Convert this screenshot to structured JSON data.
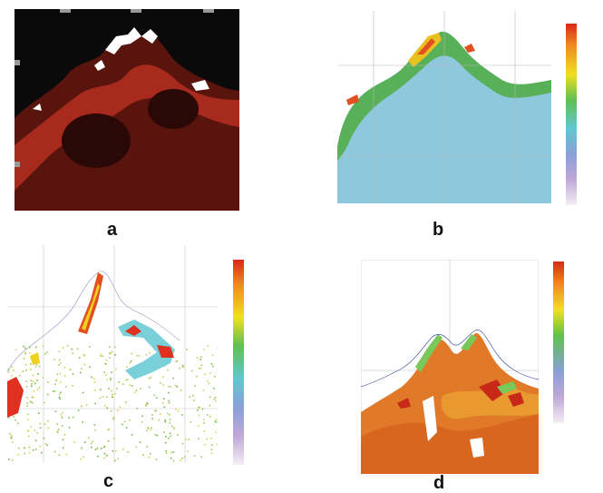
{
  "panels": [
    {
      "id": "a",
      "label": "a",
      "tick_labels": [
        "—",
        "—",
        "—",
        "—",
        "—"
      ],
      "colors": {
        "background": "#0a0a0a",
        "signal": "#b0281c",
        "land": "#ffffff"
      }
    },
    {
      "id": "b",
      "label": "b",
      "colorbar": {
        "title": "",
        "ticks": [
          "",
          "",
          "",
          "",
          ""
        ]
      },
      "colors": {
        "water": "#8ec8dc",
        "coast": "#58b058",
        "high": "#e05020",
        "land": "#ffffff"
      }
    },
    {
      "id": "c",
      "label": "c",
      "colorbar": {
        "title": "",
        "ticks": [
          "",
          "",
          ""
        ]
      },
      "colors": {
        "scatter": "#9cc850",
        "coast": "#e03020",
        "mid": "#7ad0d8",
        "land": "#ffffff"
      }
    },
    {
      "id": "d",
      "label": "d",
      "colorbar": {
        "title": "",
        "ticks": [
          "",
          "",
          ""
        ]
      },
      "colors": {
        "field": "#e07a28",
        "hot": "#d03020",
        "cool": "#7ac85a",
        "land": "#ffffff"
      }
    }
  ]
}
